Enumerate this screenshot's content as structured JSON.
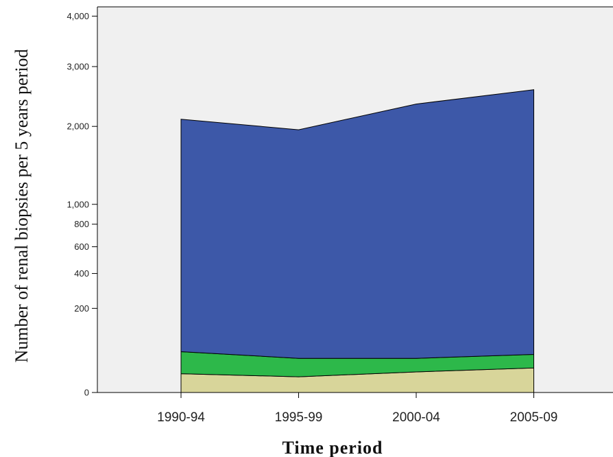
{
  "chart_data": {
    "type": "area",
    "stacked": true,
    "xlabel": "Time period",
    "ylabel": "Number of renal biopsies per 5 years period",
    "categories": [
      "1990-94",
      "1995-99",
      "2000-04",
      "2005-09"
    ],
    "y_scale": "sqrt",
    "ylim": [
      0,
      4200
    ],
    "y_ticks": [
      {
        "value": 0,
        "label": "0"
      },
      {
        "value": 200,
        "label": "200"
      },
      {
        "value": 400,
        "label": "400"
      },
      {
        "value": 600,
        "label": "600"
      },
      {
        "value": 800,
        "label": "800"
      },
      {
        "value": 1000,
        "label": "1,000"
      },
      {
        "value": 2000,
        "label": "2,000"
      },
      {
        "value": 3000,
        "label": "3,000"
      },
      {
        "value": 4000,
        "label": "4,000"
      }
    ],
    "grid": false,
    "background_color": "#f0f0f0",
    "series": [
      {
        "color": "#d8d59a",
        "values": [
          10,
          7,
          12,
          17
        ]
      },
      {
        "color": "#2db84a",
        "values": [
          37,
          26,
          21,
          24
        ]
      },
      {
        "color": "#3d58a8",
        "values": [
          2063,
          1917,
          2317,
          2549
        ]
      }
    ]
  }
}
